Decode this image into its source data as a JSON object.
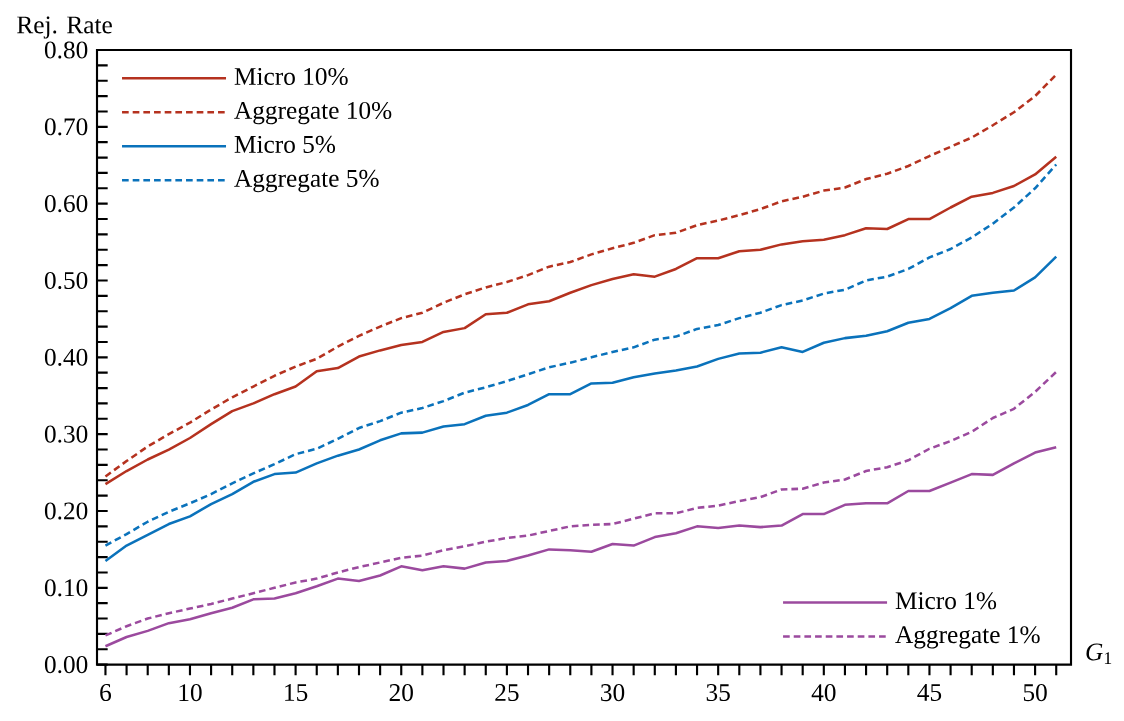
{
  "chart_data": {
    "type": "line",
    "xlabel": "*G*$_{1}$",
    "ylabel": "Rej. Rate",
    "x": [
      6,
      7,
      8,
      9,
      10,
      11,
      12,
      13,
      14,
      15,
      16,
      17,
      18,
      19,
      20,
      21,
      22,
      23,
      24,
      25,
      26,
      27,
      28,
      29,
      30,
      31,
      32,
      33,
      34,
      35,
      36,
      37,
      38,
      39,
      40,
      41,
      42,
      43,
      44,
      45,
      46,
      47,
      48,
      49,
      50,
      51
    ],
    "series": [
      {
        "name": "Micro 10%",
        "color": "#b5321f",
        "line_style": "solid",
        "values": [
          0.235,
          0.252,
          0.267,
          0.28,
          0.295,
          0.313,
          0.33,
          0.34,
          0.352,
          0.362,
          0.382,
          0.386,
          0.401,
          0.409,
          0.416,
          0.42,
          0.433,
          0.438,
          0.456,
          0.458,
          0.469,
          0.473,
          0.484,
          0.494,
          0.502,
          0.508,
          0.505,
          0.515,
          0.529,
          0.529,
          0.538,
          0.54,
          0.547,
          0.551,
          0.553,
          0.559,
          0.568,
          0.567,
          0.58,
          0.58,
          0.595,
          0.609,
          0.614,
          0.623,
          0.638,
          0.661
        ]
      },
      {
        "name": "Aggregate 10%",
        "color": "#b5321f",
        "line_style": "dashed",
        "values": [
          0.245,
          0.265,
          0.284,
          0.3,
          0.315,
          0.332,
          0.348,
          0.362,
          0.376,
          0.388,
          0.398,
          0.414,
          0.428,
          0.44,
          0.451,
          0.458,
          0.471,
          0.482,
          0.491,
          0.498,
          0.507,
          0.518,
          0.524,
          0.534,
          0.542,
          0.549,
          0.559,
          0.562,
          0.572,
          0.578,
          0.585,
          0.593,
          0.603,
          0.609,
          0.617,
          0.621,
          0.632,
          0.639,
          0.649,
          0.662,
          0.674,
          0.686,
          0.702,
          0.719,
          0.74,
          0.768
        ]
      },
      {
        "name": "Micro 5%",
        "color": "#0a72bb",
        "line_style": "solid",
        "values": [
          0.135,
          0.155,
          0.169,
          0.183,
          0.193,
          0.209,
          0.222,
          0.238,
          0.248,
          0.25,
          0.262,
          0.272,
          0.28,
          0.292,
          0.301,
          0.302,
          0.31,
          0.313,
          0.324,
          0.328,
          0.338,
          0.352,
          0.352,
          0.366,
          0.367,
          0.374,
          0.379,
          0.383,
          0.388,
          0.398,
          0.405,
          0.406,
          0.413,
          0.407,
          0.419,
          0.425,
          0.428,
          0.434,
          0.445,
          0.45,
          0.464,
          0.48,
          0.484,
          0.487,
          0.504,
          0.531
        ]
      },
      {
        "name": "Aggregate 5%",
        "color": "#0a72bb",
        "line_style": "dashed",
        "values": [
          0.155,
          0.17,
          0.186,
          0.199,
          0.21,
          0.222,
          0.236,
          0.249,
          0.261,
          0.274,
          0.281,
          0.294,
          0.308,
          0.317,
          0.328,
          0.334,
          0.343,
          0.354,
          0.361,
          0.369,
          0.378,
          0.387,
          0.393,
          0.4,
          0.407,
          0.413,
          0.423,
          0.427,
          0.437,
          0.442,
          0.451,
          0.458,
          0.468,
          0.474,
          0.483,
          0.488,
          0.5,
          0.505,
          0.515,
          0.53,
          0.541,
          0.556,
          0.574,
          0.595,
          0.62,
          0.651
        ]
      },
      {
        "name": "Micro 1%",
        "color": "#9b4a9e",
        "line_style": "solid",
        "values": [
          0.024,
          0.036,
          0.044,
          0.054,
          0.059,
          0.067,
          0.074,
          0.085,
          0.086,
          0.093,
          0.102,
          0.112,
          0.109,
          0.116,
          0.128,
          0.123,
          0.128,
          0.125,
          0.133,
          0.135,
          0.142,
          0.15,
          0.149,
          0.147,
          0.157,
          0.155,
          0.166,
          0.171,
          0.18,
          0.178,
          0.181,
          0.179,
          0.181,
          0.196,
          0.196,
          0.208,
          0.21,
          0.21,
          0.226,
          0.226,
          0.237,
          0.248,
          0.247,
          0.262,
          0.276,
          0.283
        ]
      },
      {
        "name": "Aggregate 1%",
        "color": "#9b4a9e",
        "line_style": "dashed",
        "values": [
          0.038,
          0.05,
          0.06,
          0.067,
          0.073,
          0.079,
          0.086,
          0.093,
          0.1,
          0.107,
          0.112,
          0.12,
          0.127,
          0.133,
          0.139,
          0.142,
          0.149,
          0.154,
          0.16,
          0.165,
          0.168,
          0.174,
          0.18,
          0.182,
          0.183,
          0.19,
          0.197,
          0.197,
          0.204,
          0.207,
          0.213,
          0.218,
          0.228,
          0.229,
          0.237,
          0.241,
          0.252,
          0.257,
          0.266,
          0.281,
          0.291,
          0.303,
          0.321,
          0.333,
          0.355,
          0.381
        ]
      }
    ],
    "xlim": [
      5.6,
      51.7
    ],
    "ylim": [
      0,
      0.8
    ],
    "xticks": [
      6,
      {
        "value": 7,
        "label": null
      },
      {
        "value": 8,
        "label": null
      },
      {
        "value": 9,
        "label": null
      },
      10,
      {
        "value": 11,
        "label": null
      },
      {
        "value": 12,
        "label": null
      },
      {
        "value": 13,
        "label": null
      },
      {
        "value": 14,
        "label": null
      },
      15,
      {
        "value": 16,
        "label": null
      },
      {
        "value": 17,
        "label": null
      },
      {
        "value": 18,
        "label": null
      },
      {
        "value": 19,
        "label": null
      },
      20,
      {
        "value": 21,
        "label": null
      },
      {
        "value": 22,
        "label": null
      },
      {
        "value": 23,
        "label": null
      },
      {
        "value": 24,
        "label": null
      },
      25,
      {
        "value": 26,
        "label": null
      },
      {
        "value": 27,
        "label": null
      },
      {
        "value": 28,
        "label": null
      },
      {
        "value": 29,
        "label": null
      },
      30,
      {
        "value": 31,
        "label": null
      },
      {
        "value": 32,
        "label": null
      },
      {
        "value": 33,
        "label": null
      },
      {
        "value": 34,
        "label": null
      },
      35,
      {
        "value": 36,
        "label": null
      },
      {
        "value": 37,
        "label": null
      },
      {
        "value": 38,
        "label": null
      },
      {
        "value": 39,
        "label": null
      },
      40,
      {
        "value": 41,
        "label": null
      },
      {
        "value": 42,
        "label": null
      },
      {
        "value": 43,
        "label": null
      },
      {
        "value": 44,
        "label": null
      },
      45,
      {
        "value": 46,
        "label": null
      },
      {
        "value": 47,
        "label": null
      },
      {
        "value": 48,
        "label": null
      },
      {
        "value": 49,
        "label": null
      },
      50,
      {
        "value": 51,
        "label": null
      }
    ],
    "yticks": [
      {
        "value": 0,
        "label": "0.00"
      },
      {
        "value": 0.02,
        "label": null
      },
      {
        "value": 0.04,
        "label": null
      },
      {
        "value": 0.06,
        "label": null
      },
      {
        "value": 0.08,
        "label": null
      },
      {
        "value": 0.1,
        "label": "0.10"
      },
      {
        "value": 0.12,
        "label": null
      },
      {
        "value": 0.14,
        "label": null
      },
      {
        "value": 0.16,
        "label": null
      },
      {
        "value": 0.18,
        "label": null
      },
      {
        "value": 0.2,
        "label": "0.20"
      },
      {
        "value": 0.22,
        "label": null
      },
      {
        "value": 0.24,
        "label": null
      },
      {
        "value": 0.26,
        "label": null
      },
      {
        "value": 0.28,
        "label": null
      },
      {
        "value": 0.3,
        "label": "0.30"
      },
      {
        "value": 0.32,
        "label": null
      },
      {
        "value": 0.34,
        "label": null
      },
      {
        "value": 0.36,
        "label": null
      },
      {
        "value": 0.38,
        "label": null
      },
      {
        "value": 0.4,
        "label": "0.40"
      },
      {
        "value": 0.42,
        "label": null
      },
      {
        "value": 0.44,
        "label": null
      },
      {
        "value": 0.46,
        "label": null
      },
      {
        "value": 0.48,
        "label": null
      },
      {
        "value": 0.5,
        "label": "0.50"
      },
      {
        "value": 0.52,
        "label": null
      },
      {
        "value": 0.54,
        "label": null
      },
      {
        "value": 0.56,
        "label": null
      },
      {
        "value": 0.58,
        "label": null
      },
      {
        "value": 0.6,
        "label": "0.60"
      },
      {
        "value": 0.62,
        "label": null
      },
      {
        "value": 0.64,
        "label": null
      },
      {
        "value": 0.66,
        "label": null
      },
      {
        "value": 0.68,
        "label": null
      },
      {
        "value": 0.7,
        "label": "0.70"
      },
      {
        "value": 0.72,
        "label": null
      },
      {
        "value": 0.74,
        "label": null
      },
      {
        "value": 0.76,
        "label": null
      },
      {
        "value": 0.78,
        "label": null
      },
      {
        "value": 0.8,
        "label": "0.80"
      }
    ],
    "grid": false,
    "legend": [
      "top left",
      "bottom right"
    ],
    "marker": "none"
  }
}
